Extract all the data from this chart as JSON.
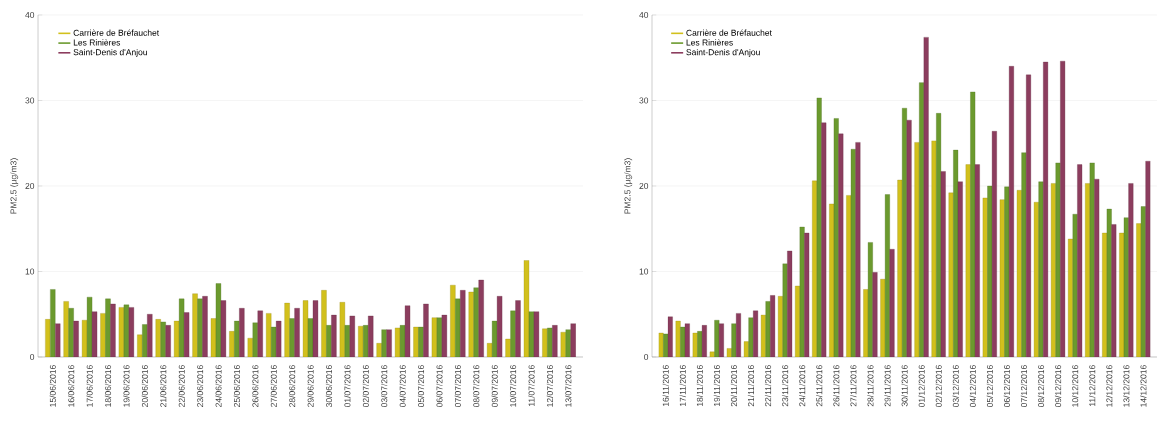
{
  "chart_data": [
    {
      "type": "bar",
      "ylabel": "PM2.5 (µg/m3)",
      "ylim": [
        0,
        40
      ],
      "yticks": [
        0,
        10,
        20,
        30,
        40
      ],
      "grid": "y",
      "legend": "top left",
      "categories": [
        "15/06/2016",
        "16/06/2016",
        "17/06/2016",
        "18/06/2016",
        "19/06/2016",
        "20/06/2016",
        "21/06/2016",
        "22/06/2016",
        "23/06/2016",
        "24/06/2016",
        "25/06/2016",
        "26/06/2016",
        "27/06/2016",
        "28/06/2016",
        "29/06/2016",
        "30/06/2016",
        "01/07/2016",
        "02/07/2016",
        "03/07/2016",
        "04/07/2016",
        "05/07/2016",
        "06/07/2016",
        "07/07/2016",
        "08/07/2016",
        "09/07/2016",
        "10/07/2016",
        "11/07/2016",
        "12/07/2016",
        "13/07/2016"
      ],
      "series": [
        {
          "name": "Carrière de Bréfauchet",
          "color": "#d2c01c",
          "values": [
            4.4,
            6.5,
            4.3,
            5.1,
            5.8,
            2.6,
            4.4,
            4.2,
            7.4,
            4.5,
            3.0,
            2.2,
            5.1,
            6.3,
            6.6,
            7.8,
            6.4,
            3.6,
            1.6,
            3.4,
            3.5,
            4.6,
            8.4,
            7.6,
            1.6,
            2.1,
            11.3,
            3.3,
            2.9
          ]
        },
        {
          "name": "Les Rinières",
          "color": "#6b9a2e",
          "values": [
            7.9,
            5.7,
            7.0,
            6.8,
            6.1,
            3.8,
            4.1,
            6.8,
            6.8,
            8.6,
            4.2,
            4.0,
            3.5,
            4.5,
            4.5,
            3.7,
            3.7,
            3.7,
            3.2,
            3.7,
            3.5,
            4.6,
            6.8,
            8.1,
            4.2,
            5.4,
            5.3,
            3.4,
            3.2
          ]
        },
        {
          "name": "Saint-Denis d'Anjou",
          "color": "#8c3d5e",
          "values": [
            3.9,
            4.2,
            5.3,
            6.2,
            5.8,
            5.0,
            3.7,
            5.2,
            7.1,
            6.6,
            5.7,
            5.4,
            4.2,
            5.7,
            6.6,
            4.9,
            4.8,
            4.8,
            3.2,
            6.0,
            6.2,
            4.9,
            7.8,
            9.0,
            7.1,
            6.6,
            5.3,
            3.7,
            3.9
          ]
        }
      ]
    },
    {
      "type": "bar",
      "ylabel": "PM2.5 (µg/m3)",
      "ylim": [
        0,
        40
      ],
      "yticks": [
        0,
        10,
        20,
        30,
        40
      ],
      "grid": "y",
      "legend": "top left",
      "categories": [
        "16/11/2016",
        "17/11/2016",
        "18/11/2016",
        "19/11/2016",
        "20/11/2016",
        "21/11/2016",
        "22/11/2016",
        "23/11/2016",
        "24/11/2016",
        "25/11/2016",
        "26/11/2016",
        "27/11/2016",
        "28/11/2016",
        "29/11/2016",
        "30/11/2016",
        "01/12/2016",
        "02/12/2016",
        "03/12/2016",
        "04/12/2016",
        "05/12/2016",
        "06/12/2016",
        "07/12/2016",
        "08/12/2016",
        "09/12/2016",
        "10/12/2016",
        "11/12/2016",
        "12/12/2016",
        "13/12/2016",
        "14/12/2016"
      ],
      "series": [
        {
          "name": "Carrière de Bréfauchet",
          "color": "#d2c01c",
          "values": [
            2.8,
            4.2,
            2.8,
            0.6,
            1.0,
            1.8,
            4.9,
            7.1,
            8.3,
            20.6,
            17.9,
            18.9,
            7.9,
            9.1,
            20.7,
            25.1,
            25.3,
            19.2,
            22.5,
            18.6,
            18.4,
            19.5,
            18.1,
            20.3,
            13.8,
            20.3,
            14.5,
            14.5,
            15.6
          ]
        },
        {
          "name": "Les Rinières",
          "color": "#6b9a2e",
          "values": [
            2.7,
            3.5,
            3.0,
            4.3,
            3.9,
            4.6,
            6.5,
            10.9,
            15.2,
            30.3,
            27.9,
            24.3,
            13.4,
            19.0,
            29.1,
            32.1,
            28.5,
            24.2,
            31.0,
            20.0,
            19.9,
            23.9,
            20.5,
            22.7,
            16.7,
            22.7,
            17.3,
            16.3,
            17.6
          ]
        },
        {
          "name": "Saint-Denis d'Anjou",
          "color": "#8c3d5e",
          "values": [
            4.7,
            3.9,
            3.7,
            3.9,
            5.1,
            5.4,
            7.2,
            12.4,
            14.5,
            27.4,
            26.1,
            25.1,
            9.9,
            12.6,
            27.7,
            37.4,
            21.7,
            20.5,
            22.5,
            26.4,
            34.0,
            33.0,
            34.5,
            34.6,
            22.5,
            20.8,
            15.5,
            20.3,
            22.9
          ]
        }
      ]
    }
  ]
}
